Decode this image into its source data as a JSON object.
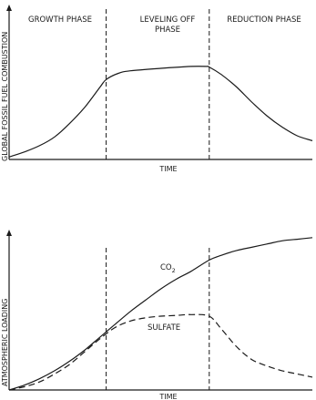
{
  "chart_data": [
    {
      "type": "line",
      "ylabel": "GLOBAL FOSSIL FUEL COMBUSTION",
      "xlabel": "TIME",
      "phases": [
        {
          "label_lines": [
            "GROWTH PHASE"
          ]
        },
        {
          "label_lines": [
            "LEVELING OFF",
            "PHASE"
          ]
        },
        {
          "label_lines": [
            "REDUCTION PHASE"
          ]
        }
      ],
      "phase_boundaries": [
        0.32,
        0.66
      ],
      "xlim": [
        0,
        1
      ],
      "ylim": [
        0,
        1
      ],
      "series": [
        {
          "style": "solid",
          "x": [
            0,
            0.05,
            0.1,
            0.15,
            0.2,
            0.25,
            0.3,
            0.32,
            0.36,
            0.4,
            0.5,
            0.6,
            0.65,
            0.66,
            0.7,
            0.75,
            0.8,
            0.85,
            0.9,
            0.95,
            1.0
          ],
          "y": [
            0.02,
            0.06,
            0.11,
            0.18,
            0.29,
            0.42,
            0.58,
            0.64,
            0.69,
            0.71,
            0.73,
            0.745,
            0.745,
            0.74,
            0.68,
            0.58,
            0.46,
            0.35,
            0.26,
            0.19,
            0.15
          ]
        }
      ]
    },
    {
      "type": "line",
      "ylabel": "ATMOSPHERIC LOADING",
      "xlabel": "TIME",
      "phase_boundaries": [
        0.32,
        0.66
      ],
      "xlim": [
        0,
        1
      ],
      "ylim": [
        0,
        1
      ],
      "series": [
        {
          "name": "CO2",
          "style": "solid",
          "x": [
            0,
            0.05,
            0.1,
            0.15,
            0.2,
            0.25,
            0.3,
            0.35,
            0.4,
            0.45,
            0.5,
            0.55,
            0.6,
            0.66,
            0.7,
            0.75,
            0.8,
            0.85,
            0.9,
            0.95,
            1.0
          ],
          "y": [
            0.0,
            0.03,
            0.07,
            0.12,
            0.18,
            0.25,
            0.33,
            0.41,
            0.49,
            0.56,
            0.63,
            0.69,
            0.74,
            0.81,
            0.84,
            0.87,
            0.89,
            0.91,
            0.93,
            0.94,
            0.95
          ]
        },
        {
          "name": "SULFATE",
          "style": "dashed",
          "x": [
            0,
            0.05,
            0.1,
            0.15,
            0.2,
            0.25,
            0.3,
            0.35,
            0.4,
            0.45,
            0.5,
            0.55,
            0.6,
            0.66,
            0.7,
            0.75,
            0.8,
            0.85,
            0.9,
            0.95,
            1.0
          ],
          "y": [
            0.0,
            0.02,
            0.05,
            0.1,
            0.16,
            0.24,
            0.32,
            0.39,
            0.43,
            0.45,
            0.46,
            0.465,
            0.47,
            0.46,
            0.38,
            0.27,
            0.19,
            0.15,
            0.12,
            0.1,
            0.08
          ]
        }
      ],
      "series_labels": [
        {
          "series": "CO2",
          "text": "CO",
          "subscript": "2"
        },
        {
          "series": "SULFATE",
          "text": "SULFATE"
        }
      ]
    }
  ]
}
